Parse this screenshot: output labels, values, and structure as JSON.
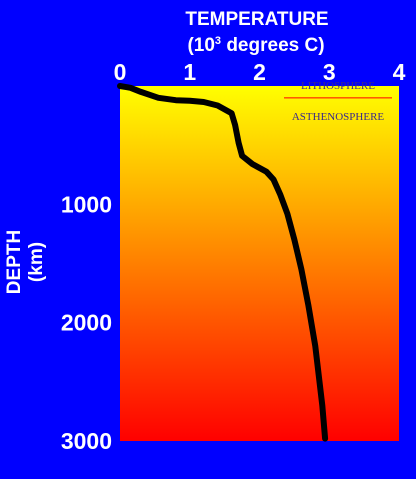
{
  "chart_data": {
    "type": "line",
    "title": "TEMPERATURE",
    "subtitle_prefix": "(10",
    "subtitle_exp": "3",
    "subtitle_suffix": " degrees C)",
    "ylabel": "DEPTH",
    "ylabel_unit": "(km)",
    "xlim": [
      0,
      4
    ],
    "ylim": [
      0,
      3000
    ],
    "y_inverted": true,
    "x_axis_position": "top",
    "x_ticks": [
      "0",
      "1",
      "2",
      "3",
      "4"
    ],
    "y_ticks": [
      {
        "value": 1000,
        "label": "1000"
      },
      {
        "value": 2000,
        "label": "2000"
      },
      {
        "value": 3000,
        "label": "3000"
      }
    ],
    "background_gradient": {
      "top": "#ffff00",
      "bottom": "#ff0000"
    },
    "page_background": "#0000ff",
    "line_color": "#000000",
    "boundary_color": "#ff0000",
    "boundary_depth": 100,
    "layer_labels": {
      "upper": "LITHOSPHERE",
      "lower": "ASTHENOSPHERE"
    },
    "grid": false,
    "series": [
      {
        "x": [
          0.0,
          0.15,
          0.3,
          0.55,
          0.8,
          1.0,
          1.2,
          1.4,
          1.6,
          1.65,
          1.7,
          1.75,
          1.9,
          2.1,
          2.2,
          2.3,
          2.4,
          2.5,
          2.6,
          2.7,
          2.8,
          2.85,
          2.9,
          2.94
        ],
        "y": [
          0,
          15,
          50,
          100,
          120,
          125,
          135,
          165,
          230,
          330,
          480,
          590,
          660,
          725,
          790,
          920,
          1080,
          1300,
          1550,
          1850,
          2200,
          2450,
          2700,
          2980
        ]
      }
    ]
  }
}
